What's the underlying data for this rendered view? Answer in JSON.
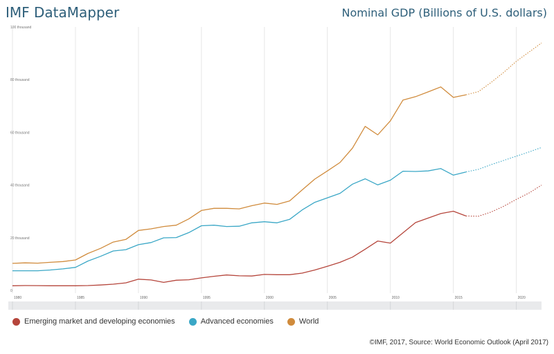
{
  "header": {
    "brand": "IMF DataMapper",
    "title": "Nominal GDP (Billions of U.S. dollars)"
  },
  "source": "©IMF, 2017, Source: World Economic Outlook (April 2017)",
  "chart_data": {
    "type": "line",
    "title": "Nominal GDP (Billions of U.S. dollars)",
    "xlim": [
      1980,
      2022
    ],
    "ylim": [
      0,
      100000
    ],
    "y_ticks": [
      0,
      20000,
      40000,
      60000,
      80000,
      100000
    ],
    "y_tick_labels": [
      "0",
      "20 thousand",
      "40 thousand",
      "60 thousand",
      "80 thousand",
      "100 thousand"
    ],
    "x_ticks": [
      1980,
      1985,
      1990,
      1995,
      2000,
      2005,
      2010,
      2015,
      2020
    ],
    "x_tick_labels": [
      "1980",
      "1985",
      "1990",
      "1995",
      "2000",
      "2005",
      "2010",
      "2015",
      "2020"
    ],
    "grid": true,
    "legend_position": "bottom-left",
    "estimates_start": 2016,
    "x": [
      1980,
      1981,
      1982,
      1983,
      1984,
      1985,
      1986,
      1987,
      1988,
      1989,
      1990,
      1991,
      1992,
      1993,
      1994,
      1995,
      1996,
      1997,
      1998,
      1999,
      2000,
      2001,
      2002,
      2003,
      2004,
      2005,
      2006,
      2007,
      2008,
      2009,
      2010,
      2011,
      2012,
      2013,
      2014,
      2015,
      2016,
      2017,
      2018,
      2019,
      2020,
      2021,
      2022
    ],
    "series": [
      {
        "name": "Emerging market and developing economies",
        "color": "#b5453b",
        "values": [
          2800,
          2900,
          2850,
          2800,
          2800,
          2800,
          2900,
          3100,
          3400,
          3900,
          5300,
          5000,
          4100,
          4900,
          5100,
          5800,
          6400,
          6900,
          6600,
          6500,
          7100,
          7000,
          7000,
          7600,
          8800,
          10200,
          11700,
          13700,
          16700,
          19800,
          19000,
          22900,
          26800,
          28500,
          30200,
          31100,
          29300,
          29200,
          30800,
          33000,
          35600,
          38000,
          41000
        ]
      },
      {
        "name": "Advanced economies",
        "color": "#3aa7c6",
        "values": [
          8500,
          8500,
          8500,
          8800,
          9200,
          9800,
          12200,
          14000,
          16000,
          16500,
          18400,
          19200,
          21000,
          21100,
          23000,
          25600,
          25800,
          25300,
          25400,
          26700,
          27100,
          26700,
          28000,
          31600,
          34500,
          36200,
          37900,
          41400,
          43400,
          41100,
          42900,
          46300,
          46200,
          46400,
          47300,
          44800,
          46000,
          47000,
          48800,
          50400,
          52000,
          53600,
          55300
        ]
      },
      {
        "name": "World",
        "color": "#d08b3c",
        "values": [
          11300,
          11500,
          11400,
          11700,
          12000,
          12600,
          15100,
          17000,
          19400,
          20400,
          23800,
          24400,
          25300,
          25800,
          28200,
          31400,
          32200,
          32200,
          32000,
          33200,
          34200,
          33700,
          35000,
          39200,
          43300,
          46400,
          49600,
          55100,
          63300,
          60100,
          65400,
          73300,
          74600,
          76400,
          78300,
          74300,
          75300,
          76500,
          80000,
          83800,
          88000,
          91500,
          95000
        ]
      }
    ]
  }
}
